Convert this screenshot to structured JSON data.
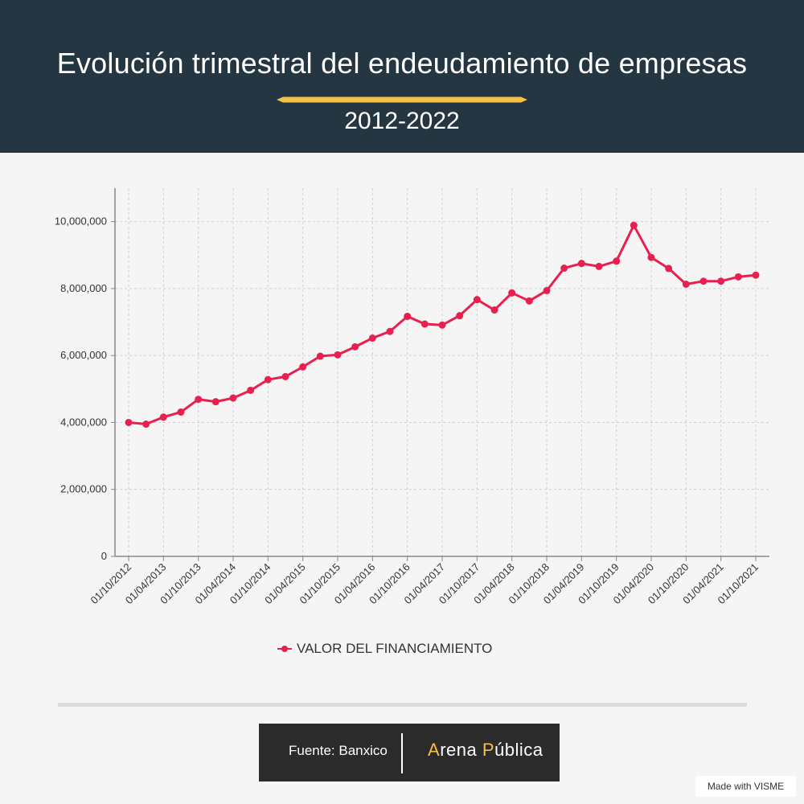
{
  "header": {
    "title": "Evolución trimestral del endeudamiento de empresas",
    "subtitle": "2012-2022"
  },
  "colors": {
    "header_bg": "#233642",
    "accent": "#f4c145",
    "series": "#e8204f"
  },
  "chart_data": {
    "type": "line",
    "title": "",
    "xlabel": "",
    "ylabel": "",
    "ylim": [
      0,
      11000000
    ],
    "yticks": [
      0,
      2000000,
      4000000,
      6000000,
      8000000,
      10000000
    ],
    "ytick_labels": [
      "0",
      "2,000,000",
      "4,000,000",
      "6,000,000",
      "8,000,000",
      "10,000,000"
    ],
    "x_tick_labels": [
      "01/10/2012",
      "01/04/2013",
      "01/10/2013",
      "01/04/2014",
      "01/10/2014",
      "01/04/2015",
      "01/10/2015",
      "01/04/2016",
      "01/10/2016",
      "01/04/2017",
      "01/10/2017",
      "01/04/2018",
      "01/10/2018",
      "01/04/2019",
      "01/10/2019",
      "01/04/2020",
      "01/10/2020",
      "01/04/2021",
      "01/10/2021"
    ],
    "grid": true,
    "legend_position": "bottom",
    "series": [
      {
        "name": "VALOR DEL FINANCIAMIENTO",
        "x": [
          "01/10/2012",
          "01/01/2013",
          "01/04/2013",
          "01/07/2013",
          "01/10/2013",
          "01/01/2014",
          "01/04/2014",
          "01/07/2014",
          "01/10/2014",
          "01/01/2015",
          "01/04/2015",
          "01/07/2015",
          "01/10/2015",
          "01/01/2016",
          "01/04/2016",
          "01/07/2016",
          "01/10/2016",
          "01/01/2017",
          "01/04/2017",
          "01/07/2017",
          "01/10/2017",
          "01/01/2018",
          "01/04/2018",
          "01/07/2018",
          "01/10/2018",
          "01/01/2019",
          "01/04/2019",
          "01/07/2019",
          "01/10/2019",
          "01/01/2020",
          "01/04/2020",
          "01/07/2020",
          "01/10/2020",
          "01/01/2021",
          "01/04/2021",
          "01/07/2021",
          "01/10/2021"
        ],
        "values": [
          4000000,
          3950000,
          4160000,
          4310000,
          4690000,
          4620000,
          4730000,
          4960000,
          5280000,
          5370000,
          5660000,
          5980000,
          6020000,
          6260000,
          6520000,
          6720000,
          7170000,
          6940000,
          6910000,
          7190000,
          7670000,
          7360000,
          7870000,
          7630000,
          7940000,
          8610000,
          8750000,
          8660000,
          8820000,
          9890000,
          8930000,
          8600000,
          8130000,
          8220000,
          8220000,
          8350000,
          8400000
        ]
      }
    ]
  },
  "footer": {
    "source": "Fuente: Banxico",
    "brand_a_cap": "A",
    "brand_a_rest": "rena ",
    "brand_p_cap": "P",
    "brand_p_rest": "ública",
    "made_with": "Made with VISME"
  }
}
